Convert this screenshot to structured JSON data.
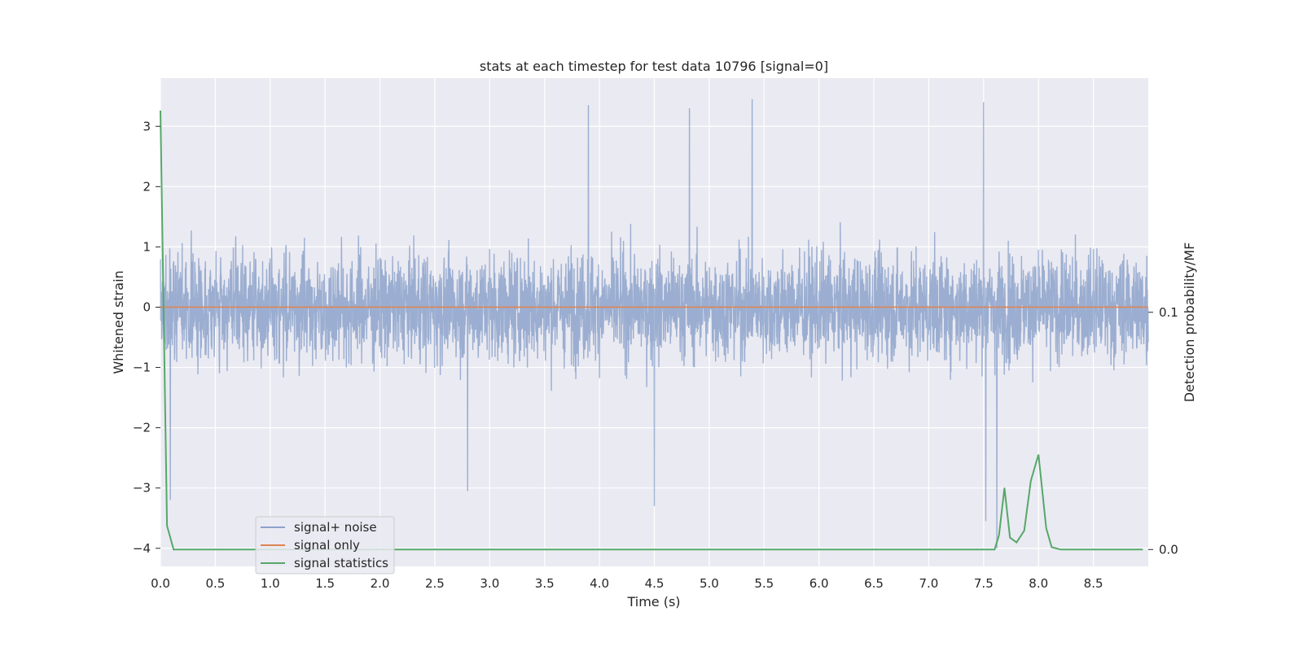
{
  "chart_data": {
    "type": "line",
    "title": "stats at each timestep for test data 10796 [signal=0]",
    "xlabel": "Time (s)",
    "ylabel": "Whitened strain",
    "y2label": "Detection probability/MF",
    "xlim": [
      0,
      9.0
    ],
    "ylim": [
      -4.3,
      3.8
    ],
    "y2lim": [
      -0.0071,
      0.1987
    ],
    "xticks": [
      "0.0",
      "0.5",
      "1.0",
      "1.5",
      "2.0",
      "2.5",
      "3.0",
      "3.5",
      "4.0",
      "4.5",
      "5.0",
      "5.5",
      "6.0",
      "6.5",
      "7.0",
      "7.5",
      "8.0",
      "8.5"
    ],
    "yticks": [
      "3",
      "2",
      "1",
      "0",
      "−1",
      "−2",
      "−3",
      "−4"
    ],
    "y2ticks": [
      "0.1",
      "0.0"
    ],
    "grid": true,
    "legend_position": "lower-left",
    "series": [
      {
        "name": "signal+ noise",
        "color": "#4c72b0",
        "axis": "left",
        "description_values": {
          "duration_s": 9.0,
          "typical_range": [
            -1.4,
            1.4
          ],
          "peaks": [
            {
              "x": 3.9,
              "y": 3.35
            },
            {
              "x": 4.82,
              "y": 3.3
            },
            {
              "x": 5.39,
              "y": 3.45
            },
            {
              "x": 7.5,
              "y": 3.4
            },
            {
              "x": 4.5,
              "y": -3.3
            },
            {
              "x": 2.8,
              "y": -3.05
            },
            {
              "x": 7.52,
              "y": -3.55
            },
            {
              "x": 7.62,
              "y": -4.0
            },
            {
              "x": 0.09,
              "y": -3.2
            }
          ]
        }
      },
      {
        "name": "signal only",
        "color": "#dd8452",
        "axis": "left",
        "x": [
          0,
          9.0
        ],
        "y": [
          0,
          0
        ]
      },
      {
        "name": "signal statistics",
        "color": "#55a868",
        "axis": "right",
        "x": [
          0.0,
          0.06,
          0.12,
          0.2,
          1.0,
          2.0,
          3.0,
          4.0,
          5.0,
          6.0,
          7.0,
          7.5,
          7.6,
          7.64,
          7.69,
          7.74,
          7.8,
          7.87,
          7.93,
          8.0,
          8.07,
          8.12,
          8.2,
          8.5,
          8.95
        ],
        "y": [
          0.185,
          0.01,
          0.0,
          0.0,
          0.0,
          0.0,
          0.0,
          0.0,
          0.0,
          0.0,
          0.0,
          0.0,
          0.0,
          0.006,
          0.026,
          0.005,
          0.003,
          0.008,
          0.029,
          0.04,
          0.009,
          0.001,
          0.0,
          0.0,
          0.0
        ]
      }
    ]
  }
}
